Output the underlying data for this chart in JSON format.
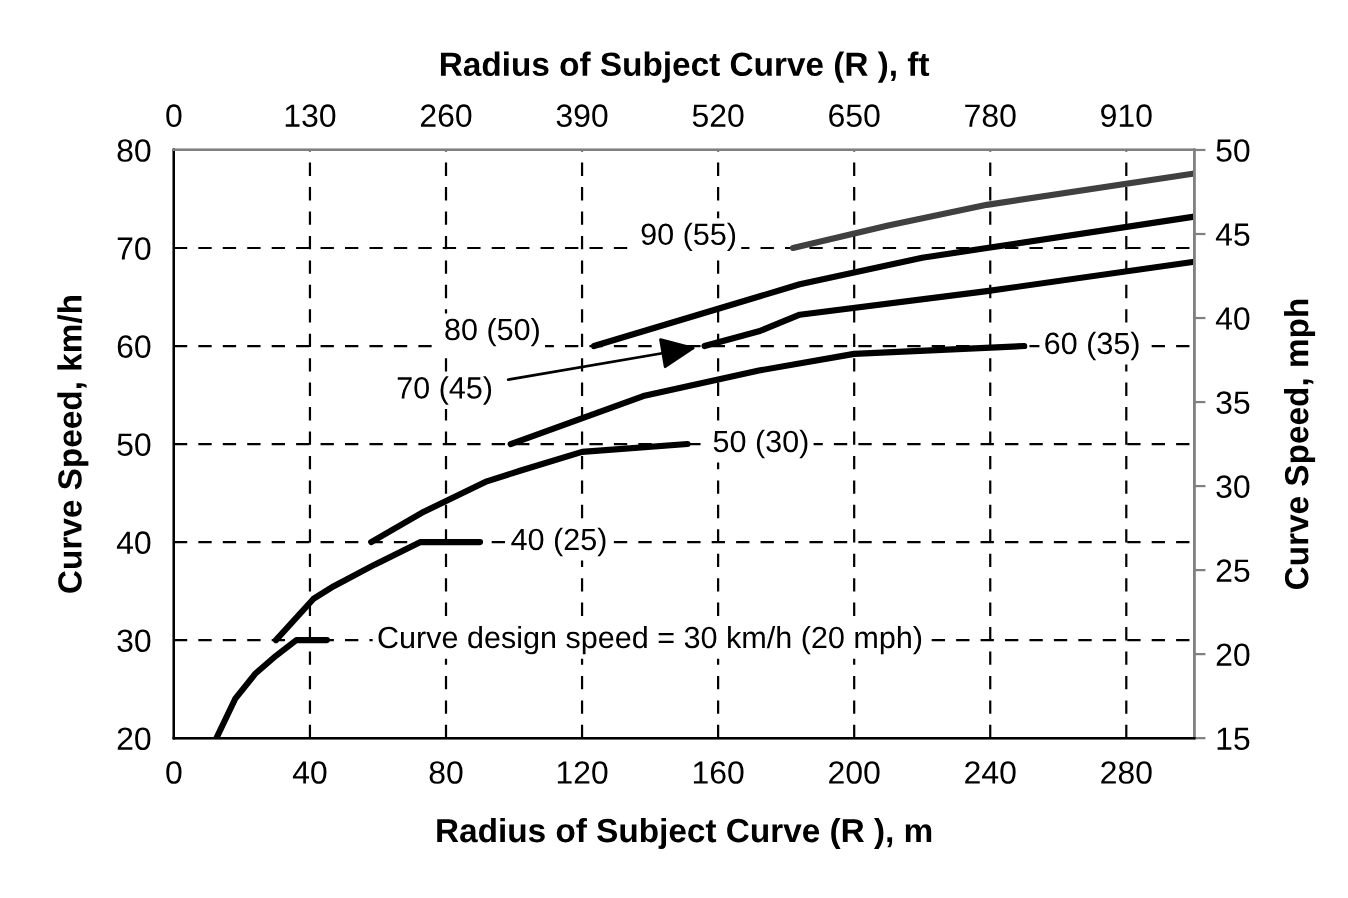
{
  "chart_data": {
    "type": "line",
    "xlabel": "Radius of Subject Curve (R ), m",
    "x2label": "Radius of Subject Curve (R ), ft",
    "ylabel": "Curve Speed, km/h",
    "y2label": "Curve Speed, mph",
    "xlim": [
      0,
      300
    ],
    "xticks": [
      0,
      40,
      80,
      120,
      160,
      200,
      240,
      280
    ],
    "x2lim": [
      0,
      975
    ],
    "x2ticks": [
      0,
      130,
      260,
      390,
      520,
      650,
      780,
      910
    ],
    "ylim": [
      20,
      80
    ],
    "yticks": [
      20,
      30,
      40,
      50,
      60,
      70,
      80
    ],
    "y2lim": [
      15,
      50
    ],
    "y2ticks": [
      15,
      20,
      25,
      30,
      35,
      40,
      45,
      50
    ],
    "grid": true,
    "line_style": "solid",
    "marker": "none",
    "series": [
      {
        "color": "#000000",
        "x": [
          12.5,
          18,
          24,
          30,
          36,
          45
        ],
        "values": [
          20,
          24,
          26.6,
          28.4,
          30,
          30
        ]
      },
      {
        "color": "#000000",
        "x": [
          30,
          41,
          47,
          59,
          72.5,
          90
        ],
        "values": [
          30,
          34.2,
          35.5,
          37.7,
          40,
          40
        ]
      },
      {
        "color": "#000000",
        "x": [
          58,
          73.5,
          92,
          102,
          120,
          151
        ],
        "values": [
          40,
          43.1,
          46.2,
          47.3,
          49.2,
          50
        ]
      },
      {
        "color": "#000000",
        "x": [
          99,
          138,
          172,
          200,
          250
        ],
        "values": [
          50,
          54.9,
          57.5,
          59.2,
          60
        ]
      },
      {
        "color": "#000000",
        "x": [
          156,
          172,
          184,
          239,
          300
        ],
        "values": [
          60,
          61.5,
          63.2,
          65.6,
          68.6
        ]
      },
      {
        "color": "#000000",
        "x": [
          123.5,
          161,
          184,
          220,
          239,
          300
        ],
        "values": [
          60,
          63.9,
          66.3,
          69,
          70,
          73.2
        ]
      },
      {
        "color": "#404040",
        "x": [
          182,
          210,
          239,
          300
        ],
        "values": [
          70,
          72.3,
          74.4,
          77.6
        ]
      }
    ],
    "annotations": [
      {
        "text": "Curve design speed = 30 km/h (20 mph)",
        "x": 45,
        "y": 30
      },
      {
        "text": "40 (25)",
        "x": 90,
        "y": 40
      },
      {
        "text": "50 (30)",
        "x": 151,
        "y": 50
      },
      {
        "text": "60 (35)",
        "x": 250,
        "y": 60
      },
      {
        "text": "70 (45)",
        "x": 156,
        "y": 60
      },
      {
        "text": "80 (50)",
        "x": 123.5,
        "y": 60
      },
      {
        "text": "90 (55)",
        "x": 182,
        "y": 70
      }
    ]
  }
}
